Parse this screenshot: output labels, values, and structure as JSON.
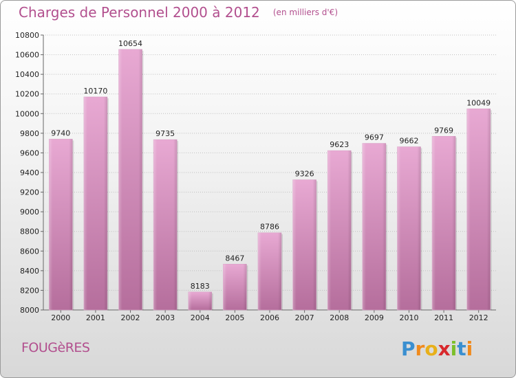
{
  "header": {
    "title": "Charges de Personnel 2000 à 2012",
    "unit": "(en milliers d'€)"
  },
  "footer": {
    "city": "FOUGèRES",
    "logo_text": "Proxiti"
  },
  "colors": {
    "bar_top": "#e8a9d3",
    "bar_bottom": "#b56e9c",
    "title": "#b24f8e",
    "grid": "#bfbfbf"
  },
  "chart_data": {
    "type": "bar",
    "title": "Charges de Personnel 2000 à 2012",
    "subtitle": "(en milliers d'€)",
    "categories": [
      "2000",
      "2001",
      "2002",
      "2003",
      "2004",
      "2005",
      "2006",
      "2007",
      "2008",
      "2009",
      "2010",
      "2011",
      "2012"
    ],
    "values": [
      9740,
      10170,
      10654,
      9735,
      8183,
      8467,
      8786,
      9326,
      9623,
      9697,
      9662,
      9769,
      10049
    ],
    "ylim": [
      8000,
      10800
    ],
    "yticks": [
      8000,
      8200,
      8400,
      8600,
      8800,
      9000,
      9200,
      9400,
      9600,
      9800,
      10000,
      10200,
      10400,
      10600,
      10800
    ],
    "grid": true,
    "xlabel": "",
    "ylabel": ""
  }
}
